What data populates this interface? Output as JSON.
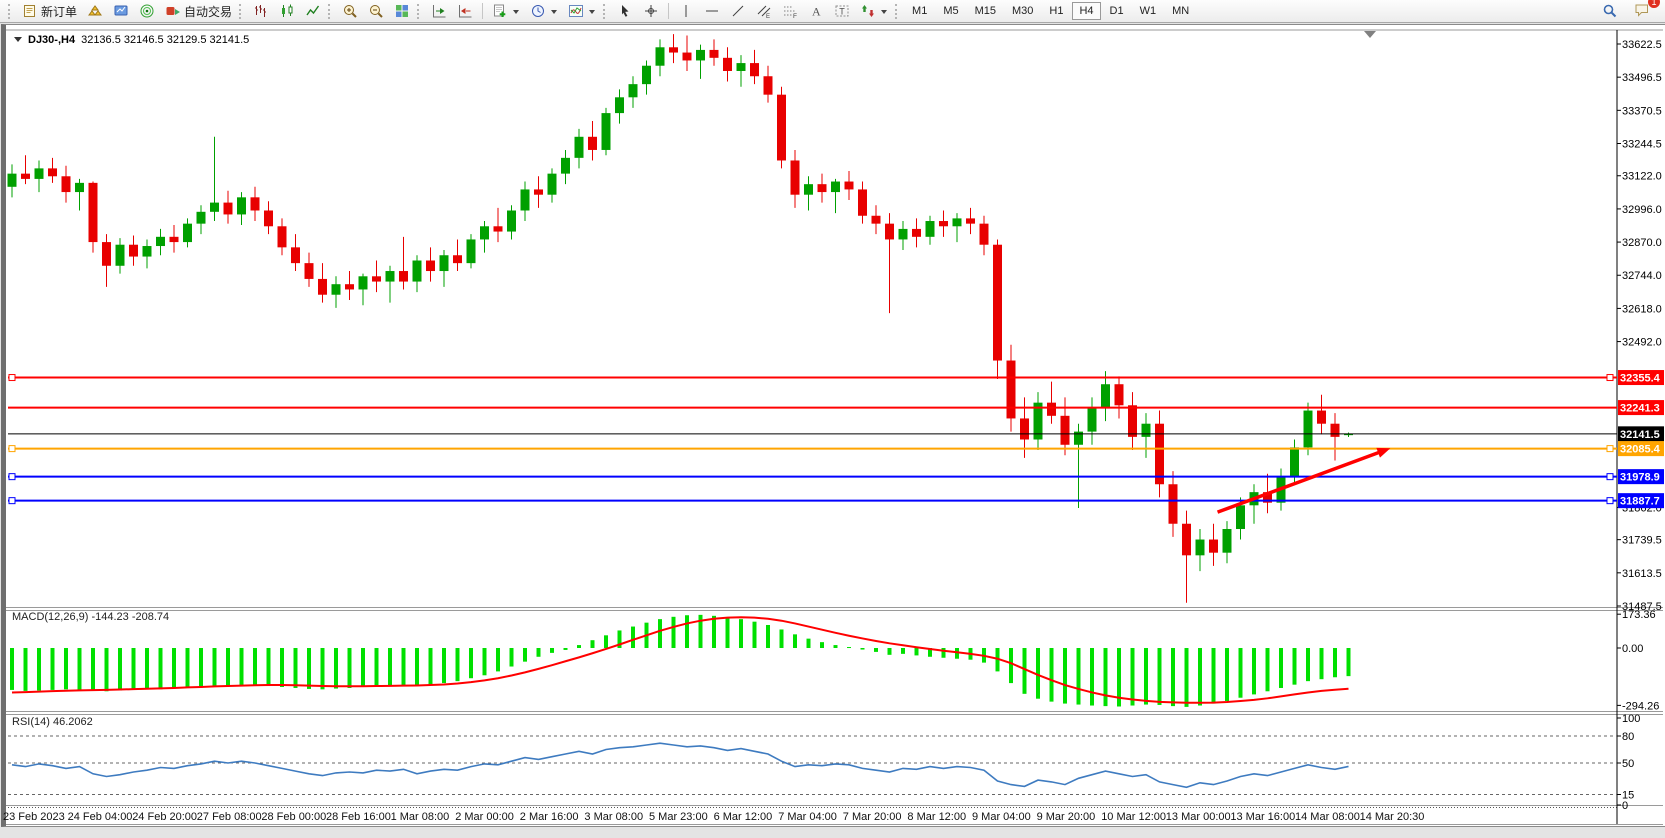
{
  "toolbar": {
    "new_order_label": "新订单",
    "autotrade_label": "自动交易",
    "timeframes": [
      "M1",
      "M5",
      "M15",
      "M30",
      "H1",
      "H4",
      "D1",
      "W1",
      "MN"
    ],
    "active_timeframe": "H4",
    "notification_badge": "1",
    "icon_names": [
      "new-order-icon",
      "gold-icon",
      "terminal-icon",
      "sonar-icon",
      "autotrade-icon",
      "bar-chart-icon",
      "candlestick-icon",
      "line-chart-icon",
      "zoom-in-icon",
      "zoom-out-icon",
      "tile-windows-icon",
      "autoscroll-icon",
      "chart-shift-icon",
      "new-chart-icon",
      "period-clock-icon",
      "template-icon",
      "cursor-icon",
      "crosshair-icon",
      "vertical-line-icon",
      "horizontal-line-icon",
      "trendline-icon",
      "channel-icon",
      "fibonacci-icon",
      "text-icon",
      "label-icon",
      "shapes-icon",
      "search-icon",
      "chat-icon"
    ]
  },
  "chart_header": {
    "symbol_period": "DJ30-,H4",
    "ohlc": "32136.5 32146.5 32129.5 32141.5"
  },
  "panes": {
    "macd": {
      "name": "MACD(12,26,9)",
      "values": "-144.23 -208.74"
    },
    "rsi": {
      "name": "RSI(14)",
      "value": "46.2062"
    }
  },
  "chart_data": [
    {
      "type": "candlestick",
      "symbol": "DJ30-",
      "period": "H4",
      "last_ohlc": {
        "open": 32136.5,
        "high": 32146.5,
        "low": 32129.5,
        "close": 32141.5
      },
      "up_color": "#00A000",
      "down_color": "#E80000",
      "ylim": [
        31450,
        33680
      ],
      "y_ticks": [
        "33622.5",
        "33496.5",
        "33370.5",
        "33244.5",
        "33122.0",
        "32996.0",
        "32870.0",
        "32744.0",
        "32618.0",
        "32492.0",
        "31862.0",
        "31739.5",
        "31613.5",
        "31487.5"
      ],
      "x_labels": [
        "23 Feb 2023",
        "24 Feb 04:00",
        "24 Feb 20:00",
        "27 Feb 08:00",
        "28 Feb 00:00",
        "28 Feb 16:00",
        "1 Mar 08:00",
        "2 Mar 00:00",
        "2 Mar 16:00",
        "3 Mar 08:00",
        "5 Mar 23:00",
        "6 Mar 12:00",
        "7 Mar 04:00",
        "7 Mar 20:00",
        "8 Mar 12:00",
        "9 Mar 04:00",
        "9 Mar 20:00",
        "10 Mar 12:00",
        "13 Mar 00:00",
        "13 Mar 16:00",
        "14 Mar 08:00",
        "14 Mar 20:30"
      ],
      "hlines": [
        {
          "price": 32355.4,
          "label": "32355.4",
          "color": "#FF0000",
          "width": 2,
          "handles": true
        },
        {
          "price": 32241.3,
          "label": "32241.3",
          "color": "#FF0000",
          "width": 2,
          "handles": false
        },
        {
          "price": 32141.5,
          "label": "32141.5",
          "color": "#000000",
          "width": 1,
          "handles": false
        },
        {
          "price": 32085.4,
          "label": "32085.4",
          "color": "#FFA500",
          "width": 2,
          "handles": true
        },
        {
          "price": 31978.9,
          "label": "31978.9",
          "color": "#0000FF",
          "width": 2,
          "handles": true
        },
        {
          "price": 31887.7,
          "label": "31887.7",
          "color": "#0000FF",
          "width": 2,
          "handles": true
        }
      ],
      "arrow": {
        "from_bar": 89.3,
        "from_price": 31844,
        "to_bar": 102.1,
        "to_price": 32087,
        "color": "#FF0000"
      },
      "candles": [
        [
          33080,
          33165,
          33040,
          33130
        ],
        [
          33130,
          33200,
          33090,
          33110
        ],
        [
          33110,
          33180,
          33060,
          33150
        ],
        [
          33150,
          33190,
          33095,
          33120
        ],
        [
          33120,
          33160,
          33020,
          33060
        ],
        [
          33060,
          33110,
          32990,
          33095
        ],
        [
          33095,
          33100,
          32830,
          32870
        ],
        [
          32870,
          32900,
          32700,
          32780
        ],
        [
          32780,
          32885,
          32750,
          32860
        ],
        [
          32860,
          32895,
          32780,
          32815
        ],
        [
          32815,
          32880,
          32770,
          32855
        ],
        [
          32855,
          32920,
          32820,
          32890
        ],
        [
          32890,
          32935,
          32830,
          32870
        ],
        [
          32870,
          32960,
          32850,
          32940
        ],
        [
          32940,
          33010,
          32900,
          32985
        ],
        [
          32985,
          33270,
          32950,
          33020
        ],
        [
          33020,
          33065,
          32940,
          32975
        ],
        [
          32975,
          33060,
          32935,
          33040
        ],
        [
          33040,
          33080,
          32950,
          32990
        ],
        [
          32990,
          33025,
          32900,
          32930
        ],
        [
          32930,
          32960,
          32820,
          32850
        ],
        [
          32850,
          32900,
          32760,
          32790
        ],
        [
          32790,
          32830,
          32700,
          32730
        ],
        [
          32730,
          32790,
          32640,
          32670
        ],
        [
          32670,
          32740,
          32620,
          32710
        ],
        [
          32710,
          32760,
          32650,
          32690
        ],
        [
          32690,
          32750,
          32630,
          32740
        ],
        [
          32740,
          32800,
          32680,
          32720
        ],
        [
          32720,
          32780,
          32640,
          32760
        ],
        [
          32760,
          32890,
          32690,
          32720
        ],
        [
          32720,
          32820,
          32680,
          32800
        ],
        [
          32800,
          32850,
          32720,
          32760
        ],
        [
          32760,
          32840,
          32700,
          32820
        ],
        [
          32820,
          32880,
          32760,
          32790
        ],
        [
          32790,
          32900,
          32770,
          32880
        ],
        [
          32880,
          32950,
          32830,
          32930
        ],
        [
          32930,
          33000,
          32870,
          32910
        ],
        [
          32910,
          33010,
          32880,
          32990
        ],
        [
          32990,
          33100,
          32950,
          33070
        ],
        [
          33070,
          33120,
          33000,
          33050
        ],
        [
          33050,
          33150,
          33020,
          33130
        ],
        [
          33130,
          33220,
          33090,
          33190
        ],
        [
          33190,
          33300,
          33150,
          33270
        ],
        [
          33270,
          33330,
          33180,
          33220
        ],
        [
          33220,
          33380,
          33200,
          33360
        ],
        [
          33360,
          33450,
          33320,
          33420
        ],
        [
          33420,
          33500,
          33380,
          33470
        ],
        [
          33470,
          33560,
          33430,
          33540
        ],
        [
          33540,
          33640,
          33500,
          33610
        ],
        [
          33610,
          33660,
          33550,
          33590
        ],
        [
          33590,
          33655,
          33520,
          33560
        ],
        [
          33560,
          33620,
          33490,
          33600
        ],
        [
          33600,
          33640,
          33540,
          33570
        ],
        [
          33570,
          33610,
          33480,
          33520
        ],
        [
          33520,
          33580,
          33460,
          33550
        ],
        [
          33550,
          33600,
          33470,
          33500
        ],
        [
          33500,
          33540,
          33400,
          33430
        ],
        [
          33430,
          33460,
          33150,
          33180
        ],
        [
          33180,
          33220,
          33000,
          33050
        ],
        [
          33050,
          33120,
          32990,
          33090
        ],
        [
          33090,
          33130,
          33020,
          33060
        ],
        [
          33060,
          33110,
          32980,
          33100
        ],
        [
          33100,
          33140,
          33030,
          33070
        ],
        [
          33070,
          33100,
          32940,
          32970
        ],
        [
          32970,
          33010,
          32900,
          32940
        ],
        [
          32940,
          32980,
          32600,
          32880
        ],
        [
          32880,
          32950,
          32840,
          32920
        ],
        [
          32920,
          32960,
          32850,
          32890
        ],
        [
          32890,
          32970,
          32860,
          32950
        ],
        [
          32950,
          32990,
          32890,
          32930
        ],
        [
          32930,
          32980,
          32870,
          32960
        ],
        [
          32960,
          33000,
          32900,
          32940
        ],
        [
          32940,
          32970,
          32820,
          32860
        ],
        [
          32860,
          32880,
          32350,
          32420
        ],
        [
          32420,
          32480,
          32150,
          32200
        ],
        [
          32200,
          32280,
          32050,
          32120
        ],
        [
          32120,
          32300,
          32080,
          32260
        ],
        [
          32260,
          32340,
          32180,
          32210
        ],
        [
          32210,
          32280,
          32060,
          32100
        ],
        [
          32100,
          32180,
          31860,
          32150
        ],
        [
          32150,
          32280,
          32100,
          32240
        ],
        [
          32240,
          32380,
          32190,
          32330
        ],
        [
          32330,
          32360,
          32200,
          32250
        ],
        [
          32250,
          32300,
          32080,
          32130
        ],
        [
          32130,
          32220,
          32050,
          32180
        ],
        [
          32180,
          32230,
          31900,
          31950
        ],
        [
          31950,
          32000,
          31750,
          31800
        ],
        [
          31800,
          31850,
          31500,
          31680
        ],
        [
          31680,
          31780,
          31620,
          31740
        ],
        [
          31740,
          31800,
          31640,
          31690
        ],
        [
          31690,
          31810,
          31650,
          31780
        ],
        [
          31780,
          31900,
          31740,
          31870
        ],
        [
          31870,
          31950,
          31800,
          31920
        ],
        [
          31920,
          31990,
          31840,
          31880
        ],
        [
          31880,
          32010,
          31850,
          31980
        ],
        [
          31980,
          32120,
          31950,
          32090
        ],
        [
          32090,
          32260,
          32060,
          32230
        ],
        [
          32230,
          32290,
          32140,
          32180
        ],
        [
          32180,
          32220,
          32040,
          32130
        ],
        [
          32136.5,
          32146.5,
          32129.5,
          32141.5
        ]
      ]
    },
    {
      "type": "macd",
      "label": "MACD(12,26,9)",
      "main_value": -144.23,
      "signal_value": -208.74,
      "histogram_color": "#00E000",
      "signal_color": "#FF0000",
      "y_ticks": [
        "173.36",
        "0.00",
        "-294.26"
      ],
      "tick_values": [
        173.36,
        0,
        -294.26
      ],
      "histogram": [
        -215,
        -220,
        -218,
        -215,
        -212,
        -216,
        -220,
        -222,
        -218,
        -214,
        -210,
        -212,
        -208,
        -205,
        -200,
        -195,
        -198,
        -196,
        -192,
        -195,
        -200,
        -205,
        -210,
        -212,
        -208,
        -205,
        -200,
        -195,
        -190,
        -195,
        -192,
        -188,
        -180,
        -170,
        -155,
        -140,
        -120,
        -95,
        -70,
        -45,
        -25,
        -10,
        15,
        40,
        65,
        90,
        110,
        130,
        148,
        160,
        168,
        170,
        165,
        158,
        148,
        135,
        118,
        95,
        70,
        48,
        30,
        15,
        5,
        -8,
        -20,
        -35,
        -30,
        -38,
        -45,
        -50,
        -55,
        -60,
        -75,
        -120,
        -180,
        -235,
        -260,
        -275,
        -285,
        -290,
        -295,
        -298,
        -300,
        -295,
        -290,
        -292,
        -298,
        -302,
        -295,
        -285,
        -272,
        -255,
        -238,
        -222,
        -205,
        -188,
        -170,
        -160,
        -150,
        -144.23
      ],
      "signal": [
        -228,
        -226,
        -224,
        -221,
        -219,
        -217,
        -216,
        -215,
        -213,
        -211,
        -209,
        -207,
        -205,
        -202,
        -200,
        -197,
        -195,
        -193,
        -191,
        -190,
        -190,
        -191,
        -193,
        -195,
        -196,
        -196,
        -196,
        -195,
        -194,
        -193,
        -192,
        -190,
        -187,
        -182,
        -175,
        -166,
        -155,
        -141,
        -125,
        -107,
        -88,
        -68,
        -48,
        -27,
        -5,
        18,
        42,
        65,
        88,
        108,
        126,
        140,
        150,
        156,
        158,
        156,
        150,
        140,
        126,
        110,
        94,
        78,
        63,
        49,
        36,
        24,
        14,
        4,
        -5,
        -14,
        -22,
        -30,
        -40,
        -55,
        -78,
        -108,
        -138,
        -165,
        -190,
        -210,
        -228,
        -243,
        -255,
        -264,
        -271,
        -276,
        -279,
        -281,
        -281,
        -280,
        -277,
        -272,
        -266,
        -258,
        -248,
        -238,
        -228,
        -220,
        -214,
        -208.74
      ]
    },
    {
      "type": "rsi",
      "label": "RSI(14)",
      "value": 46.2062,
      "line_color": "#3E7BC0",
      "levels": [
        80,
        50,
        15
      ],
      "y_ticks": [
        "100",
        "80",
        "50",
        "15",
        "0"
      ],
      "tick_values": [
        100,
        80,
        50,
        15,
        0
      ],
      "values": [
        48,
        46,
        49,
        47,
        44,
        46,
        38,
        35,
        37,
        40,
        42,
        45,
        44,
        47,
        49,
        52,
        50,
        52,
        50,
        47,
        44,
        41,
        38,
        36,
        39,
        40,
        39,
        42,
        41,
        43,
        38,
        41,
        43,
        42,
        46,
        49,
        48,
        52,
        56,
        54,
        57,
        60,
        63,
        60,
        65,
        67,
        68,
        70,
        72,
        70,
        68,
        69,
        67,
        64,
        66,
        63,
        60,
        52,
        46,
        48,
        47,
        49,
        48,
        44,
        42,
        40,
        44,
        43,
        46,
        44,
        46,
        45,
        42,
        30,
        26,
        24,
        31,
        29,
        26,
        33,
        37,
        41,
        38,
        35,
        37,
        29,
        26,
        23,
        28,
        26,
        30,
        35,
        38,
        36,
        40,
        44,
        48,
        45,
        43,
        46.2
      ]
    }
  ]
}
